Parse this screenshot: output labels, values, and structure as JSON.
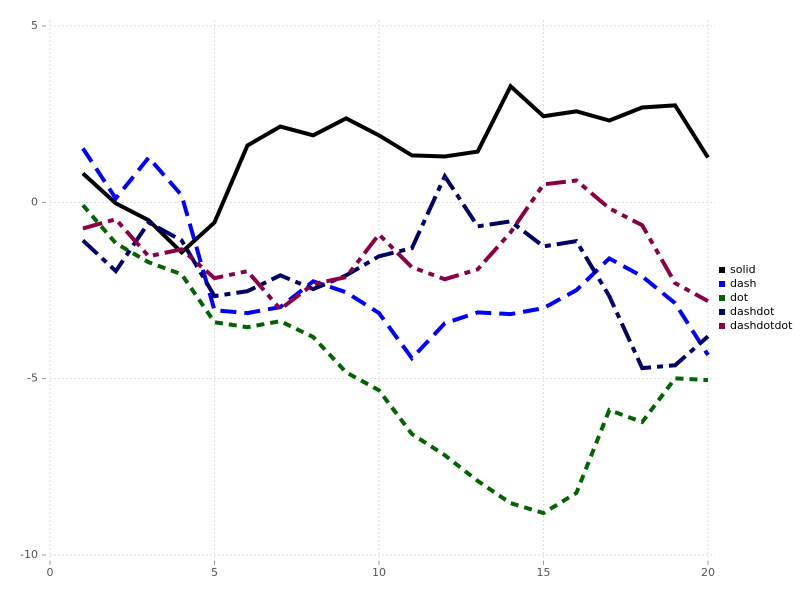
{
  "chart_data": {
    "type": "line",
    "x": [
      1,
      2,
      3,
      4,
      5,
      6,
      7,
      8,
      9,
      10,
      11,
      12,
      13,
      14,
      15,
      16,
      17,
      18,
      19,
      20
    ],
    "series": [
      {
        "name": "solid",
        "color": "#000000",
        "values": [
          0.82,
          -0.03,
          -0.51,
          -1.42,
          -0.57,
          1.61,
          2.15,
          1.9,
          2.38,
          1.9,
          1.33,
          1.3,
          1.44,
          3.29,
          2.44,
          2.58,
          2.32,
          2.69,
          2.75,
          1.27
        ]
      },
      {
        "name": "dash",
        "color": "#0000ff",
        "values": [
          1.53,
          0.11,
          1.27,
          0.2,
          -3.06,
          -3.14,
          -2.97,
          -2.24,
          -2.55,
          -3.14,
          -4.42,
          -3.43,
          -3.12,
          -3.17,
          -3.0,
          -2.49,
          -1.59,
          -2.1,
          -2.86,
          -4.33
        ]
      },
      {
        "name": "dot",
        "color": "#006400",
        "values": [
          -0.08,
          -1.16,
          -1.7,
          -2.04,
          -3.4,
          -3.54,
          -3.37,
          -3.82,
          -4.82,
          -5.33,
          -6.57,
          -7.17,
          -7.9,
          -8.53,
          -8.81,
          -8.24,
          -5.89,
          -6.23,
          -4.99,
          -5.04
        ]
      },
      {
        "name": "dashdot",
        "color": "#000066",
        "values": [
          -1.08,
          -1.95,
          -0.57,
          -1.08,
          -2.66,
          -2.52,
          -2.07,
          -2.46,
          -2.07,
          -1.53,
          -1.3,
          0.74,
          -0.68,
          -0.54,
          -1.25,
          -1.1,
          -2.66,
          -4.7,
          -4.62,
          -3.8
        ]
      },
      {
        "name": "dashdotdot",
        "color": "#8b0045",
        "values": [
          -0.74,
          -0.48,
          -1.53,
          -1.33,
          -2.15,
          -1.95,
          -3.03,
          -2.32,
          -2.12,
          -0.91,
          -1.84,
          -2.18,
          -1.9,
          -0.85,
          0.51,
          0.62,
          -0.17,
          -0.65,
          -2.29,
          -2.8
        ]
      }
    ],
    "xlim": [
      0,
      20
    ],
    "ylim": [
      -10,
      5
    ],
    "xticks": [
      0,
      5,
      10,
      15,
      20
    ],
    "yticks": [
      5,
      0,
      -5,
      -10
    ],
    "grid": true,
    "legend": "right"
  }
}
